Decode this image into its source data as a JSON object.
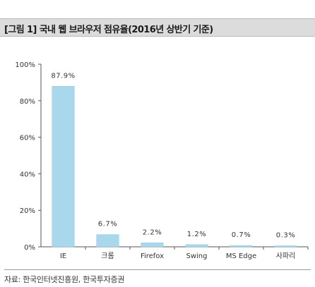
{
  "header": {
    "title": "[그림 1] 국내 웹 브라우저 점유율(2016년 상반기 기준)"
  },
  "footer": {
    "source": "자료: 한국인터넷진흥원, 한국투자증권"
  },
  "chart_data": {
    "type": "bar",
    "title": "",
    "xlabel": "",
    "ylabel": "",
    "categories": [
      "IE",
      "크롬",
      "Firefox",
      "Swing",
      "MS Edge",
      "사파리"
    ],
    "values": [
      87.9,
      6.7,
      2.2,
      1.2,
      0.7,
      0.3
    ],
    "data_labels": [
      "87.9%",
      "6.7%",
      "2.2%",
      "1.2%",
      "0.7%",
      "0.3%"
    ],
    "y_ticks": [
      "0%",
      "20%",
      "40%",
      "60%",
      "80%",
      "100%"
    ],
    "ylim": [
      0,
      100
    ],
    "grid": false,
    "legend": "none",
    "colors": {
      "bar": "#a9d8ec",
      "bar_edge": "#8fc6dd",
      "axis": "#555555"
    }
  }
}
